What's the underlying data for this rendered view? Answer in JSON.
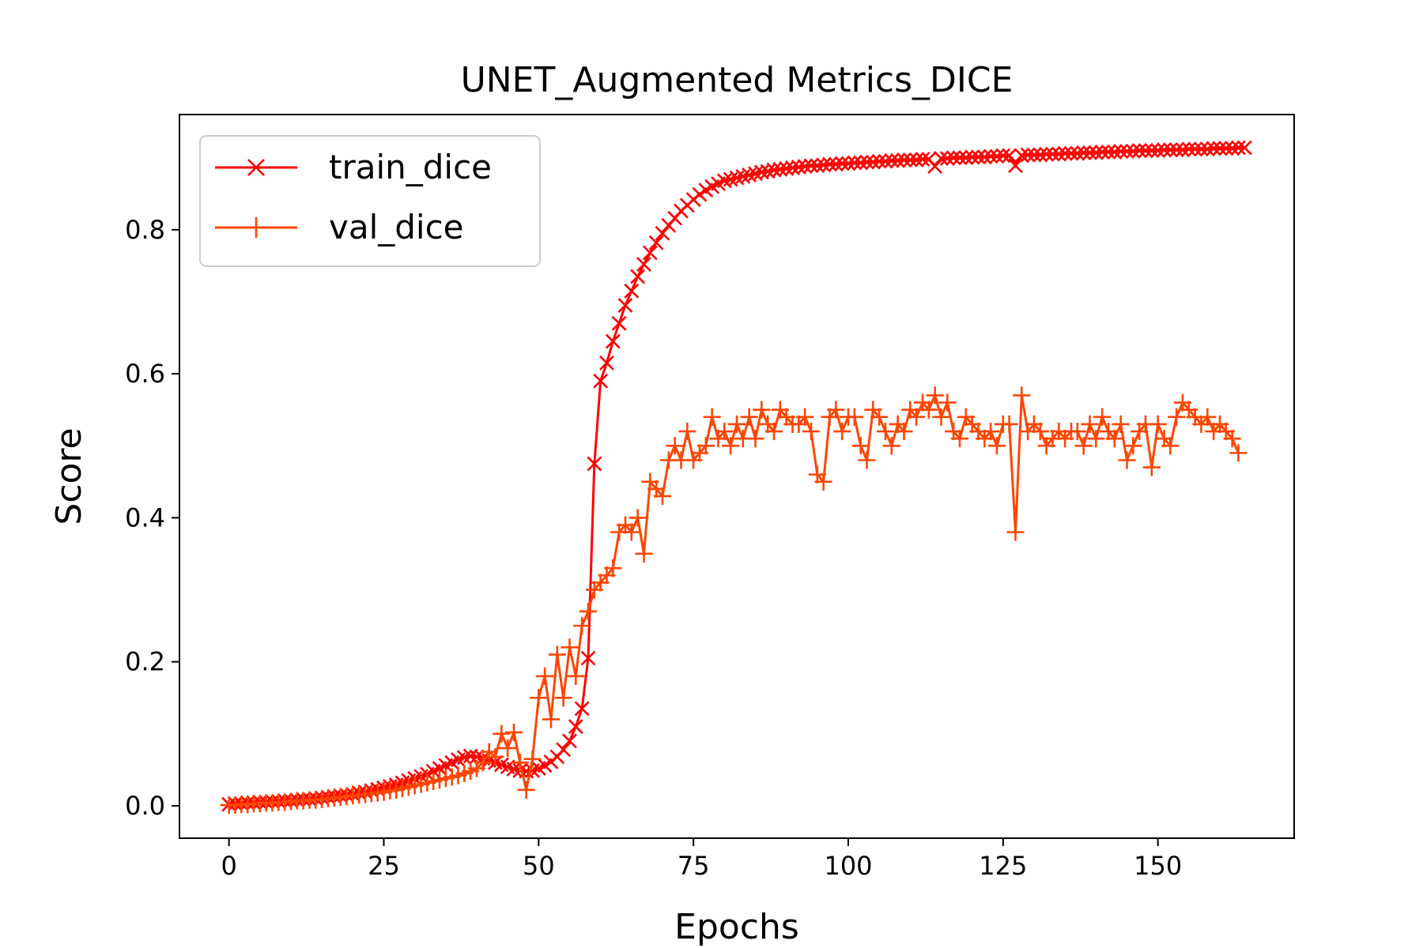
{
  "chart_data": {
    "type": "line",
    "title": "UNET_Augmented Metrics_DICE",
    "xlabel": "Epochs",
    "ylabel": "Score",
    "xlim": [
      -8,
      172
    ],
    "ylim": [
      -0.045,
      0.96
    ],
    "xticks": [
      0,
      25,
      50,
      75,
      100,
      125,
      150
    ],
    "yticks": [
      0.0,
      0.2,
      0.4,
      0.6,
      0.8
    ],
    "xtick_labels": [
      "0",
      "25",
      "50",
      "75",
      "100",
      "125",
      "150"
    ],
    "ytick_labels": [
      "0.0",
      "0.2",
      "0.4",
      "0.6",
      "0.8"
    ],
    "grid": false,
    "legend_position": "top-left",
    "legend": [
      "train_dice",
      "val_dice"
    ],
    "series": [
      {
        "name": "train_dice",
        "color": "#ff0000",
        "marker": "x",
        "values": [
          0.002,
          0.003,
          0.003,
          0.004,
          0.004,
          0.005,
          0.005,
          0.006,
          0.006,
          0.007,
          0.007,
          0.008,
          0.009,
          0.009,
          0.01,
          0.011,
          0.012,
          0.013,
          0.014,
          0.015,
          0.016,
          0.018,
          0.019,
          0.021,
          0.023,
          0.025,
          0.027,
          0.029,
          0.032,
          0.035,
          0.038,
          0.041,
          0.044,
          0.048,
          0.052,
          0.056,
          0.06,
          0.064,
          0.067,
          0.069,
          0.068,
          0.066,
          0.063,
          0.06,
          0.057,
          0.054,
          0.051,
          0.049,
          0.048,
          0.049,
          0.052,
          0.056,
          0.061,
          0.068,
          0.078,
          0.09,
          0.11,
          0.135,
          0.205,
          0.475,
          0.59,
          0.615,
          0.645,
          0.67,
          0.695,
          0.715,
          0.735,
          0.752,
          0.768,
          0.782,
          0.795,
          0.806,
          0.816,
          0.826,
          0.834,
          0.842,
          0.849,
          0.855,
          0.86,
          0.864,
          0.868,
          0.87,
          0.872,
          0.874,
          0.876,
          0.878,
          0.88,
          0.881,
          0.883,
          0.884,
          0.885,
          0.886,
          0.887,
          0.888,
          0.889,
          0.889,
          0.89,
          0.891,
          0.891,
          0.892,
          0.892,
          0.893,
          0.893,
          0.894,
          0.894,
          0.895,
          0.895,
          0.896,
          0.896,
          0.897,
          0.897,
          0.897,
          0.898,
          0.898,
          0.888,
          0.899,
          0.899,
          0.9,
          0.9,
          0.9,
          0.901,
          0.901,
          0.901,
          0.902,
          0.902,
          0.903,
          0.903,
          0.889,
          0.903,
          0.904,
          0.904,
          0.904,
          0.905,
          0.905,
          0.905,
          0.906,
          0.906,
          0.906,
          0.907,
          0.907,
          0.907,
          0.908,
          0.908,
          0.908,
          0.909,
          0.909,
          0.909,
          0.91,
          0.91,
          0.91,
          0.91,
          0.911,
          0.911,
          0.911,
          0.911,
          0.912,
          0.912,
          0.912,
          0.912,
          0.913,
          0.913,
          0.913,
          0.913,
          0.914,
          0.914
        ]
      },
      {
        "name": "val_dice",
        "color": "#ff4500",
        "marker": "+",
        "values": [
          0.001,
          0.001,
          0.002,
          0.002,
          0.003,
          0.003,
          0.004,
          0.004,
          0.005,
          0.005,
          0.006,
          0.007,
          0.007,
          0.008,
          0.008,
          0.009,
          0.01,
          0.011,
          0.012,
          0.013,
          0.014,
          0.015,
          0.016,
          0.017,
          0.018,
          0.019,
          0.021,
          0.022,
          0.024,
          0.026,
          0.028,
          0.03,
          0.032,
          0.034,
          0.036,
          0.038,
          0.04,
          0.042,
          0.045,
          0.048,
          0.052,
          0.06,
          0.075,
          0.068,
          0.1,
          0.08,
          0.102,
          0.06,
          0.022,
          0.065,
          0.15,
          0.18,
          0.12,
          0.21,
          0.15,
          0.22,
          0.18,
          0.25,
          0.27,
          0.3,
          0.31,
          0.32,
          0.33,
          0.38,
          0.39,
          0.38,
          0.4,
          0.35,
          0.45,
          0.44,
          0.43,
          0.48,
          0.5,
          0.48,
          0.52,
          0.48,
          0.49,
          0.5,
          0.54,
          0.51,
          0.52,
          0.5,
          0.53,
          0.51,
          0.54,
          0.51,
          0.55,
          0.53,
          0.52,
          0.55,
          0.54,
          0.53,
          0.53,
          0.54,
          0.52,
          0.46,
          0.45,
          0.54,
          0.55,
          0.52,
          0.54,
          0.54,
          0.5,
          0.48,
          0.55,
          0.54,
          0.52,
          0.5,
          0.53,
          0.52,
          0.55,
          0.54,
          0.56,
          0.55,
          0.57,
          0.54,
          0.56,
          0.52,
          0.51,
          0.54,
          0.53,
          0.52,
          0.51,
          0.52,
          0.5,
          0.53,
          0.53,
          0.38,
          0.57,
          0.52,
          0.53,
          0.52,
          0.5,
          0.51,
          0.52,
          0.51,
          0.52,
          0.52,
          0.5,
          0.53,
          0.51,
          0.54,
          0.52,
          0.51,
          0.53,
          0.48,
          0.5,
          0.52,
          0.53,
          0.47,
          0.53,
          0.51,
          0.5,
          0.54,
          0.56,
          0.55,
          0.54,
          0.53,
          0.54,
          0.52,
          0.53,
          0.52,
          0.51,
          0.49
        ]
      }
    ]
  }
}
